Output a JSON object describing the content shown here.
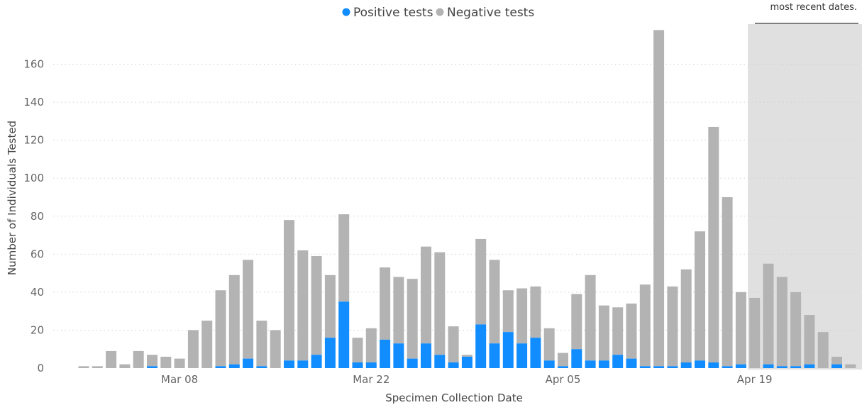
{
  "note": {
    "text": "most recent dates."
  },
  "chart_data": {
    "type": "bar",
    "stacked": true,
    "title": "",
    "xlabel": "Specimen Collection Date",
    "ylabel": "Number of Individuals Tested",
    "ylim": [
      0,
      180
    ],
    "yticks": [
      0,
      20,
      40,
      60,
      80,
      100,
      120,
      140,
      160
    ],
    "grid": true,
    "legend_position": "top-center",
    "x_tick_labels": [
      {
        "index": 7,
        "label": "Mar 08"
      },
      {
        "index": 21,
        "label": "Mar 22"
      },
      {
        "index": 35,
        "label": "Apr 05"
      },
      {
        "index": 49,
        "label": "Apr 19"
      }
    ],
    "shaded_from_index": 48,
    "series": [
      {
        "name": "Positive tests",
        "color": "#118dff",
        "values": [
          0,
          0,
          0,
          0,
          0,
          1,
          0,
          0,
          0,
          0,
          1,
          2,
          5,
          1,
          0,
          4,
          4,
          7,
          16,
          35,
          3,
          3,
          15,
          13,
          5,
          13,
          7,
          3,
          6,
          23,
          13,
          19,
          13,
          16,
          4,
          1,
          10,
          4,
          4,
          7,
          5,
          1,
          1,
          1,
          3,
          4,
          3,
          1,
          2,
          0,
          2,
          1,
          1,
          2,
          0,
          2,
          0
        ]
      },
      {
        "name": "Negative tests",
        "color": "#b3b3b3",
        "values": [
          1,
          1,
          9,
          2,
          9,
          6,
          6,
          5,
          20,
          25,
          40,
          47,
          52,
          24,
          20,
          74,
          58,
          52,
          33,
          46,
          13,
          18,
          38,
          35,
          42,
          51,
          54,
          19,
          1,
          45,
          44,
          22,
          29,
          27,
          17,
          7,
          29,
          45,
          29,
          25,
          29,
          43,
          177,
          42,
          49,
          68,
          124,
          89,
          38,
          37,
          53,
          47,
          39,
          26,
          19,
          4,
          2
        ]
      }
    ]
  }
}
